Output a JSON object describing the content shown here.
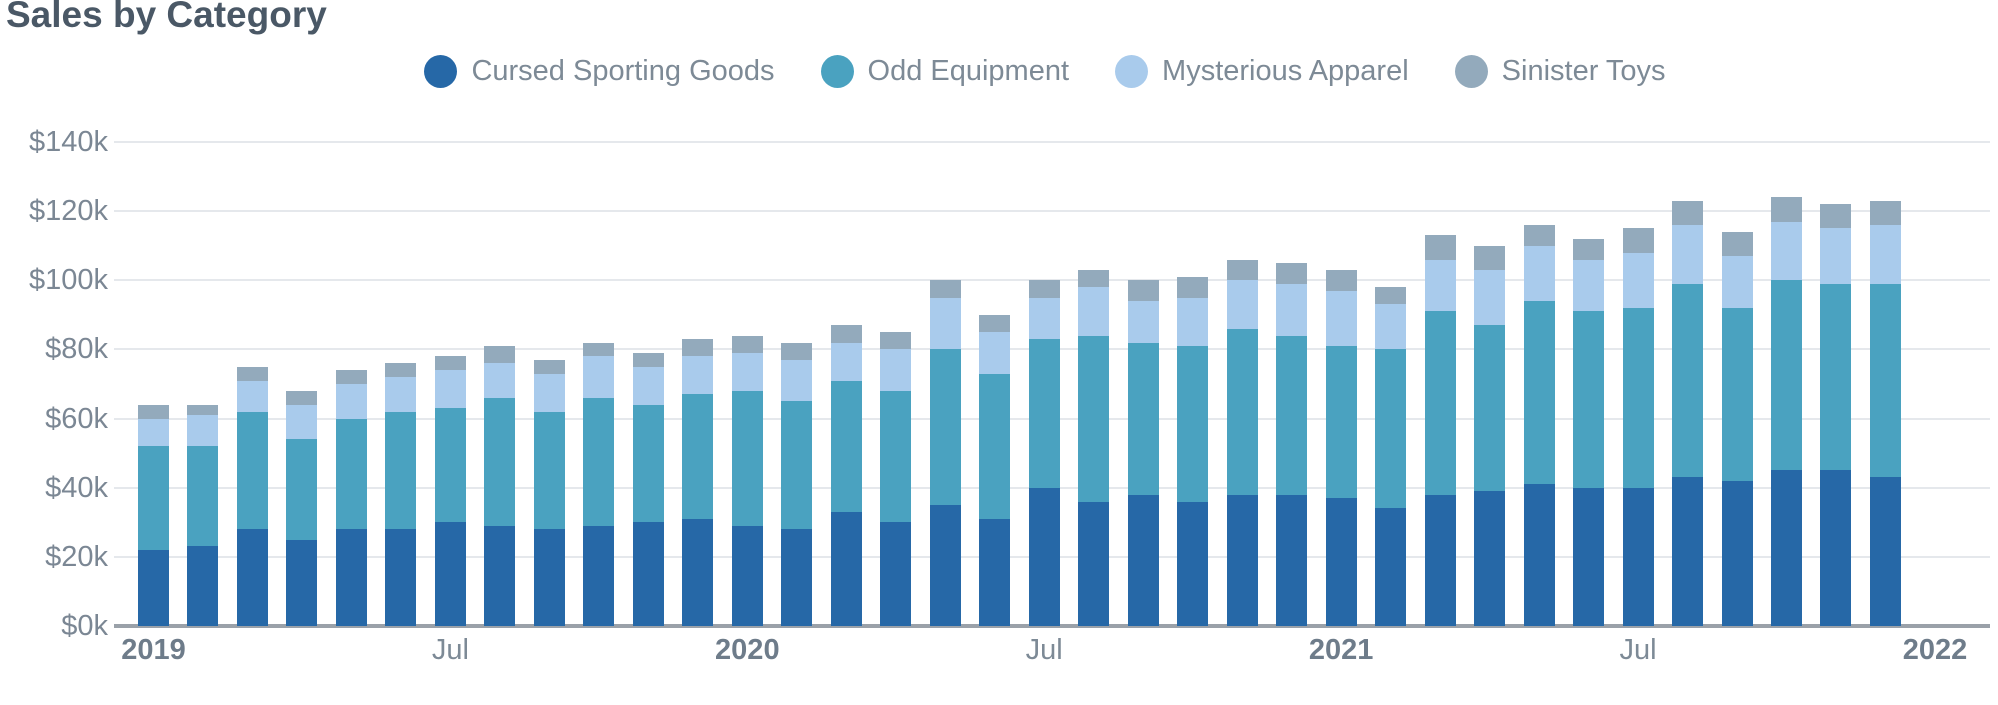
{
  "title": "Sales by Category",
  "chart_data": {
    "type": "bar",
    "stacked": true,
    "title": "Sales by Category",
    "xlabel": "",
    "ylabel": "",
    "ylim": [
      0,
      140
    ],
    "grid": true,
    "legend_position": "top",
    "y_axis_ticks": [
      "$0k",
      "$20k",
      "$40k",
      "$60k",
      "$80k",
      "$100k",
      "$120k",
      "$140k"
    ],
    "y_tick_values": [
      0,
      20,
      40,
      60,
      80,
      100,
      120,
      140
    ],
    "x": [
      "Jan 2019",
      "Feb 2019",
      "Mar 2019",
      "Apr 2019",
      "May 2019",
      "Jun 2019",
      "Jul 2019",
      "Aug 2019",
      "Sep 2019",
      "Oct 2019",
      "Nov 2019",
      "Dec 2019",
      "Jan 2020",
      "Feb 2020",
      "Mar 2020",
      "Apr 2020",
      "May 2020",
      "Jun 2020",
      "Jul 2020",
      "Aug 2020",
      "Sep 2020",
      "Oct 2020",
      "Nov 2020",
      "Dec 2020",
      "Jan 2021",
      "Feb 2021",
      "Mar 2021",
      "Apr 2021",
      "May 2021",
      "Jun 2021",
      "Jul 2021",
      "Aug 2021",
      "Sep 2021",
      "Oct 2021",
      "Nov 2021",
      "Dec 2021"
    ],
    "x_axis_ticks": [
      {
        "index": 0,
        "label": "2019",
        "bold": true
      },
      {
        "index": 6,
        "label": "Jul",
        "bold": false
      },
      {
        "index": 12,
        "label": "2020",
        "bold": true
      },
      {
        "index": 18,
        "label": "Jul",
        "bold": false
      },
      {
        "index": 24,
        "label": "2021",
        "bold": true
      },
      {
        "index": 30,
        "label": "Jul",
        "bold": false
      },
      {
        "index": 36,
        "label": "2022",
        "bold": true
      }
    ],
    "series": [
      {
        "name": "Cursed Sporting Goods",
        "color": "#2668a7",
        "values": [
          22,
          23,
          28,
          25,
          28,
          28,
          30,
          29,
          28,
          29,
          30,
          31,
          29,
          28,
          33,
          30,
          35,
          31,
          40,
          36,
          38,
          36,
          38,
          38,
          37,
          34,
          38,
          39,
          41,
          40,
          40,
          43,
          42,
          45,
          45,
          43
        ]
      },
      {
        "name": "Odd Equipment",
        "color": "#4aa2c0",
        "values": [
          30,
          29,
          34,
          29,
          32,
          34,
          33,
          37,
          34,
          37,
          34,
          36,
          39,
          37,
          38,
          38,
          45,
          42,
          43,
          48,
          44,
          45,
          48,
          46,
          44,
          46,
          53,
          48,
          53,
          51,
          52,
          56,
          50,
          55,
          54,
          56
        ]
      },
      {
        "name": "Mysterious Apparel",
        "color": "#a9cbec",
        "values": [
          8,
          9,
          9,
          10,
          10,
          10,
          11,
          10,
          11,
          12,
          11,
          11,
          11,
          12,
          11,
          12,
          15,
          12,
          12,
          14,
          12,
          14,
          14,
          15,
          16,
          13,
          15,
          16,
          16,
          15,
          16,
          17,
          15,
          17,
          16,
          17
        ]
      },
      {
        "name": "Sinister Toys",
        "color": "#93aabc",
        "values": [
          4,
          3,
          4,
          4,
          4,
          4,
          4,
          5,
          4,
          4,
          4,
          5,
          5,
          5,
          5,
          5,
          5,
          5,
          5,
          5,
          6,
          6,
          6,
          6,
          6,
          5,
          7,
          7,
          6,
          6,
          7,
          7,
          7,
          7,
          7,
          7
        ]
      }
    ]
  }
}
